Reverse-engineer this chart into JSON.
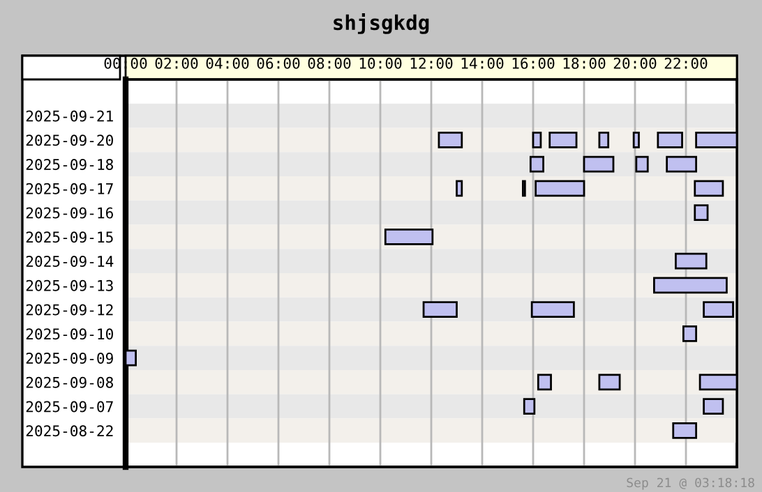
{
  "chart_data": {
    "type": "bar",
    "orientation": "horizontal",
    "title": "shjsgkdg",
    "categories": [
      "2025-09-21",
      "2025-09-20",
      "2025-09-18",
      "2025-09-17",
      "2025-09-16",
      "2025-09-15",
      "2025-09-14",
      "2025-09-13",
      "2025-09-12",
      "2025-09-10",
      "2025-09-09",
      "2025-09-08",
      "2025-09-07",
      "2025-08-22"
    ],
    "series": [
      {
        "color": "#c0c0f0",
        "base": [
          0,
          12.3,
          15.9,
          13.0,
          22.35,
          10.2,
          21.6,
          20.75,
          11.7,
          21.9,
          0,
          16.2,
          15.65,
          21.5
        ],
        "values": [
          0.05,
          0.9,
          0.5,
          0.2,
          0.5,
          1.85,
          1.2,
          2.85,
          1.3,
          0.5,
          0.4,
          0.5,
          0.4,
          0.9
        ]
      },
      {
        "color": "#c0c0f0",
        "base": [
          null,
          16.0,
          18.0,
          15.6,
          null,
          null,
          null,
          null,
          15.95,
          null,
          null,
          18.6,
          22.7,
          null
        ],
        "values": [
          null,
          0.3,
          1.15,
          0.08,
          null,
          null,
          null,
          null,
          1.65,
          null,
          null,
          0.8,
          0.75,
          null
        ]
      },
      {
        "color": "#c0c0f0",
        "base": [
          null,
          16.65,
          20.05,
          16.1,
          null,
          null,
          null,
          null,
          22.7,
          null,
          null,
          22.55,
          null,
          null
        ],
        "values": [
          null,
          1.05,
          0.45,
          1.9,
          null,
          null,
          null,
          null,
          1.15,
          null,
          null,
          1.45,
          null,
          null
        ]
      },
      {
        "color": "#c0c0f0",
        "base": [
          null,
          18.6,
          21.25,
          22.35,
          null,
          null,
          null,
          null,
          null,
          null,
          null,
          null,
          null,
          null
        ],
        "values": [
          null,
          0.35,
          1.15,
          1.1,
          null,
          null,
          null,
          null,
          null,
          null,
          null,
          null,
          null,
          null
        ]
      },
      {
        "color": "#c0c0f0",
        "base": [
          null,
          19.95,
          null,
          null,
          null,
          null,
          null,
          null,
          null,
          null,
          null,
          null,
          null,
          null
        ],
        "values": [
          null,
          0.2,
          null,
          null,
          null,
          null,
          null,
          null,
          null,
          null,
          null,
          null,
          null,
          null
        ]
      },
      {
        "color": "#c0c0f0",
        "base": [
          null,
          20.9,
          null,
          null,
          null,
          null,
          null,
          null,
          null,
          null,
          null,
          null,
          null,
          null
        ],
        "values": [
          null,
          0.95,
          null,
          null,
          null,
          null,
          null,
          null,
          null,
          null,
          null,
          null,
          null,
          null
        ]
      },
      {
        "color": "#c0c0f0",
        "base": [
          null,
          22.4,
          null,
          null,
          null,
          null,
          null,
          null,
          null,
          null,
          null,
          null,
          null,
          null
        ],
        "values": [
          null,
          1.6,
          null,
          null,
          null,
          null,
          null,
          null,
          null,
          null,
          null,
          null,
          null,
          null
        ]
      }
    ],
    "xlim": [
      0,
      24
    ],
    "xticks": [
      {
        "value": 0,
        "label": "00:00"
      },
      {
        "value": 2,
        "label": "02:00"
      },
      {
        "value": 4,
        "label": "04:00"
      },
      {
        "value": 6,
        "label": "06:00"
      },
      {
        "value": 8,
        "label": "08:00"
      },
      {
        "value": 10,
        "label": "10:00"
      },
      {
        "value": 12,
        "label": "12:00"
      },
      {
        "value": 14,
        "label": "14:00"
      },
      {
        "value": 16,
        "label": "16:00"
      },
      {
        "value": 18,
        "label": "18:00"
      },
      {
        "value": 20,
        "label": "20:00"
      },
      {
        "value": 22,
        "label": "22:00"
      }
    ],
    "grid": "x",
    "legend": false,
    "annotations": [
      "Sep 21 @ 03:18:18"
    ]
  }
}
